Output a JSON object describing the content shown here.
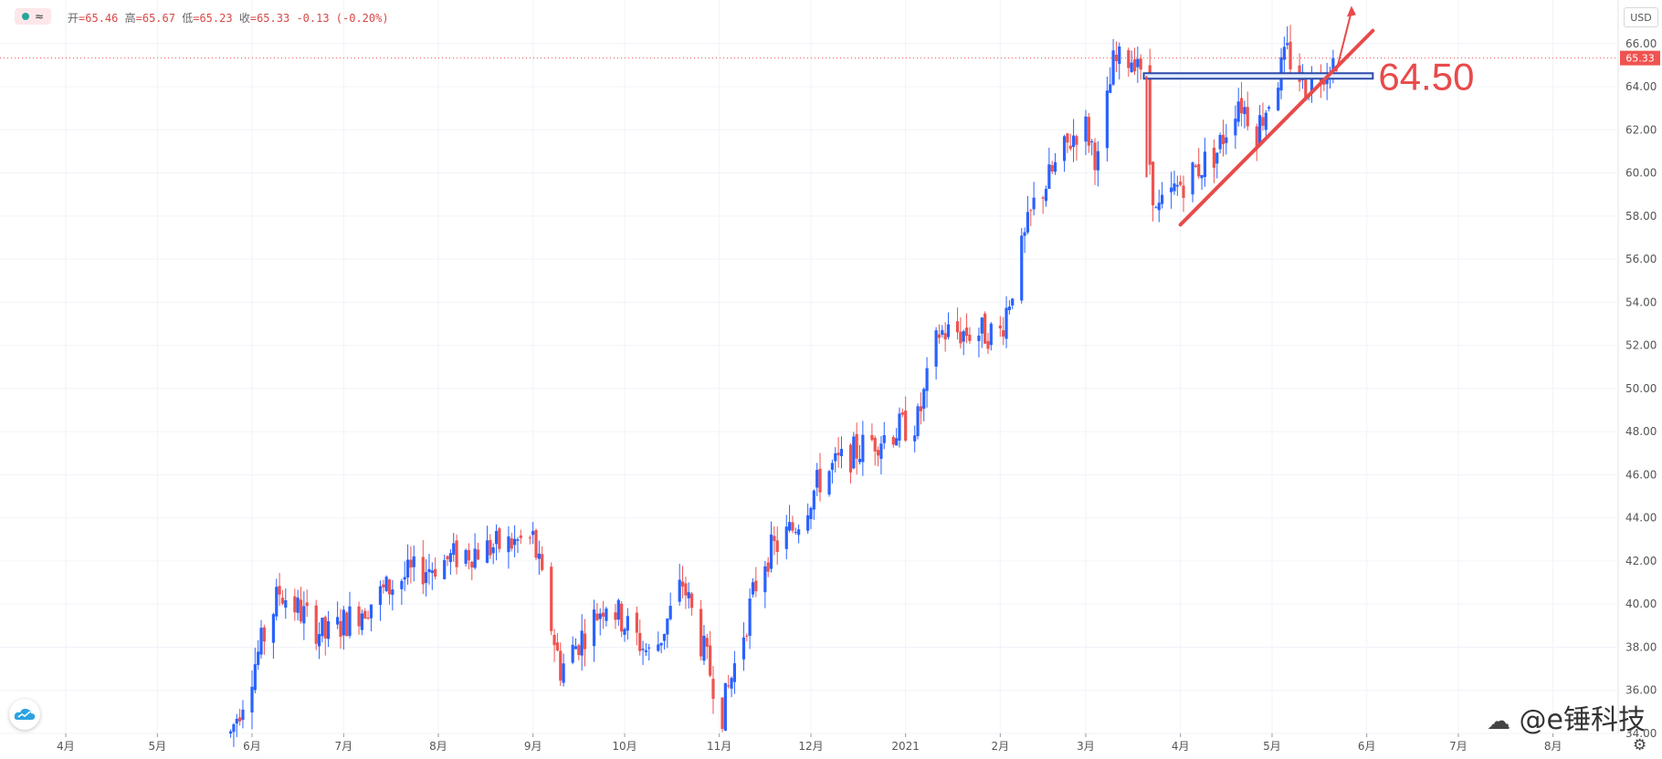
{
  "header": {
    "legend_icon": "eye-dot-icon",
    "ohlc": {
      "open_label": "开",
      "open": "=65.46",
      "high_label": "高",
      "high": "=65.67",
      "low_label": "低",
      "low": "=65.23",
      "close_label": "收",
      "close": "=65.33",
      "change": "-0.13 (-0.20%)"
    },
    "currency": "USD"
  },
  "price_tag": "65.33",
  "annotation_label": "64.50",
  "watermark": "@e锤科技",
  "colors": {
    "up": "#2962ff",
    "down": "#ef5350",
    "annotation": "#e84a4a",
    "grid": "#f0f3fa"
  },
  "chart_data": {
    "type": "candlestick",
    "title": "",
    "y_axis": {
      "min": 34,
      "max": 67.6,
      "ticks": [
        "34.00",
        "36.00",
        "38.00",
        "40.00",
        "42.00",
        "44.00",
        "46.00",
        "48.00",
        "50.00",
        "52.00",
        "54.00",
        "56.00",
        "58.00",
        "60.00",
        "62.00",
        "64.00",
        "66.00"
      ]
    },
    "x_axis": {
      "ticks": [
        "4月",
        "5月",
        "6月",
        "7月",
        "8月",
        "9月",
        "10月",
        "11月",
        "12月",
        "2021",
        "2月",
        "3月",
        "4月",
        "5月",
        "6月",
        "7月",
        "8月"
      ]
    },
    "last_price": 65.33,
    "trend_anchors": [
      {
        "date": "2020-05-25",
        "price": 34.0
      },
      {
        "date": "2020-06-10",
        "price": 40.6
      },
      {
        "date": "2020-06-25",
        "price": 38.5
      },
      {
        "date": "2020-07-20",
        "price": 41.2
      },
      {
        "date": "2020-08-10",
        "price": 42.4
      },
      {
        "date": "2020-09-01",
        "price": 43.0
      },
      {
        "date": "2020-09-10",
        "price": 37.0
      },
      {
        "date": "2020-09-25",
        "price": 40.2
      },
      {
        "date": "2020-10-10",
        "price": 37.5
      },
      {
        "date": "2020-10-20",
        "price": 41.0
      },
      {
        "date": "2020-11-02",
        "price": 35.0
      },
      {
        "date": "2020-11-15",
        "price": 42.0
      },
      {
        "date": "2020-11-25",
        "price": 43.5
      },
      {
        "date": "2020-12-05",
        "price": 46.0
      },
      {
        "date": "2020-12-20",
        "price": 47.5
      },
      {
        "date": "2021-01-05",
        "price": 48.5
      },
      {
        "date": "2021-01-12",
        "price": 52.6
      },
      {
        "date": "2021-02-01",
        "price": 52.6
      },
      {
        "date": "2021-02-12",
        "price": 58.5
      },
      {
        "date": "2021-02-28",
        "price": 62.5
      },
      {
        "date": "2021-03-05",
        "price": 60.5
      },
      {
        "date": "2021-03-10",
        "price": 65.0
      },
      {
        "date": "2021-03-18",
        "price": 65.5
      },
      {
        "date": "2021-03-24",
        "price": 58.0
      },
      {
        "date": "2021-04-01",
        "price": 59.5
      },
      {
        "date": "2021-04-13",
        "price": 61.0
      },
      {
        "date": "2021-04-20",
        "price": 63.5
      },
      {
        "date": "2021-04-26",
        "price": 62.0
      },
      {
        "date": "2021-05-06",
        "price": 65.5
      },
      {
        "date": "2021-05-12",
        "price": 64.0
      },
      {
        "date": "2021-05-21",
        "price": 65.33
      }
    ],
    "annotations": {
      "support_level": 64.5,
      "trendline": [
        {
          "date": "2021-04-01",
          "price": 57.6
        },
        {
          "date": "2021-06-03",
          "price": 66.6
        }
      ]
    }
  }
}
